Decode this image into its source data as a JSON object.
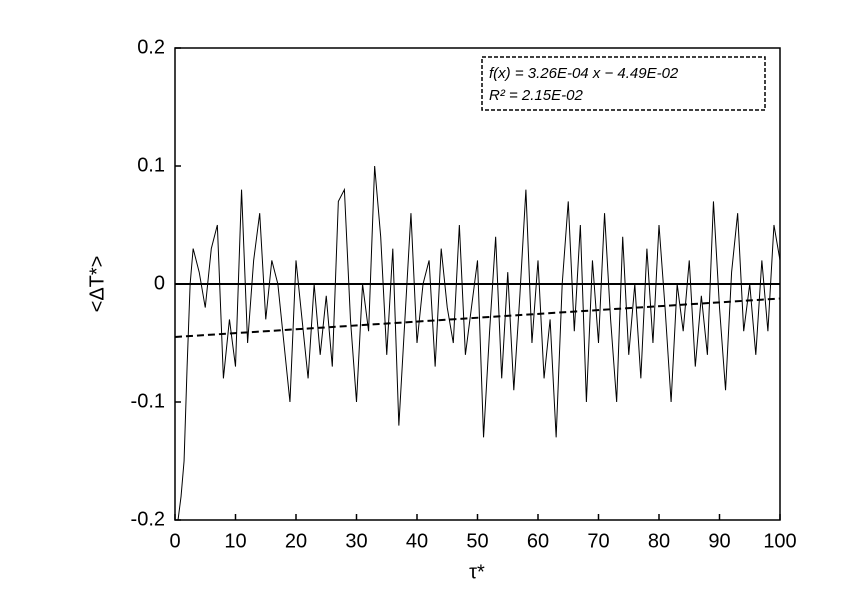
{
  "chart_data": {
    "type": "line",
    "xlabel": "τ*",
    "ylabel": "<ΔT*>",
    "annotation": [
      "f(x) = 3.26E-04 x − 4.49E-02",
      "R² = 2.15E-02"
    ],
    "xlim": [
      0,
      100
    ],
    "xticks": [
      0,
      10,
      20,
      30,
      40,
      50,
      60,
      70,
      80,
      90,
      100
    ],
    "ylim": [
      -0.2,
      0.2
    ],
    "yticks": [
      -0.2,
      -0.1,
      0,
      0.1,
      0.2
    ],
    "grid": false,
    "series": [
      {
        "color": "#000000",
        "dash": false,
        "x": [
          0.5,
          1,
          1.5,
          2,
          2.5,
          3,
          4,
          5,
          6,
          7,
          8,
          9,
          10,
          11,
          12,
          13,
          14,
          15,
          16,
          17,
          18,
          19,
          20,
          21,
          22,
          23,
          24,
          25,
          26,
          27,
          28,
          29,
          30,
          31,
          32,
          33,
          34,
          35,
          36,
          37,
          38,
          39,
          40,
          41,
          42,
          43,
          44,
          45,
          46,
          47,
          48,
          49,
          50,
          51,
          52,
          53,
          54,
          55,
          56,
          57,
          58,
          59,
          60,
          61,
          62,
          63,
          64,
          65,
          66,
          67,
          68,
          69,
          70,
          71,
          72,
          73,
          74,
          75,
          76,
          77,
          78,
          79,
          80,
          81,
          82,
          83,
          84,
          85,
          86,
          87,
          88,
          89,
          90,
          91,
          92,
          93,
          94,
          95,
          96,
          97,
          98,
          99,
          100
        ],
        "values": [
          -0.2,
          -0.18,
          -0.15,
          -0.07,
          0.0,
          0.03,
          0.01,
          -0.02,
          0.03,
          0.05,
          -0.08,
          -0.03,
          -0.07,
          0.08,
          -0.05,
          0.02,
          0.06,
          -0.03,
          0.02,
          0.0,
          -0.05,
          -0.1,
          0.02,
          -0.03,
          -0.08,
          0.0,
          -0.06,
          -0.01,
          -0.07,
          0.07,
          0.08,
          -0.03,
          -0.1,
          0.0,
          -0.04,
          0.1,
          0.04,
          -0.06,
          0.03,
          -0.12,
          -0.03,
          0.06,
          -0.05,
          0.0,
          0.02,
          -0.07,
          0.03,
          -0.02,
          -0.05,
          0.05,
          -0.06,
          -0.02,
          0.02,
          -0.13,
          -0.04,
          0.04,
          -0.08,
          0.01,
          -0.09,
          -0.01,
          0.08,
          -0.05,
          0.02,
          -0.08,
          -0.03,
          -0.13,
          0.0,
          0.07,
          -0.04,
          0.05,
          -0.1,
          0.02,
          -0.05,
          0.06,
          -0.03,
          -0.1,
          0.04,
          -0.06,
          0.0,
          -0.08,
          0.03,
          -0.05,
          0.05,
          -0.02,
          -0.1,
          0.0,
          -0.04,
          0.02,
          -0.07,
          -0.01,
          -0.06,
          0.07,
          -0.02,
          -0.09,
          0.01,
          0.06,
          -0.04,
          0.0,
          -0.06,
          0.02,
          -0.04,
          0.05,
          0.02
        ]
      },
      {
        "color": "#000000",
        "dash": true,
        "x": [
          0,
          100
        ],
        "values": [
          -0.0449,
          -0.0123
        ]
      }
    ]
  }
}
